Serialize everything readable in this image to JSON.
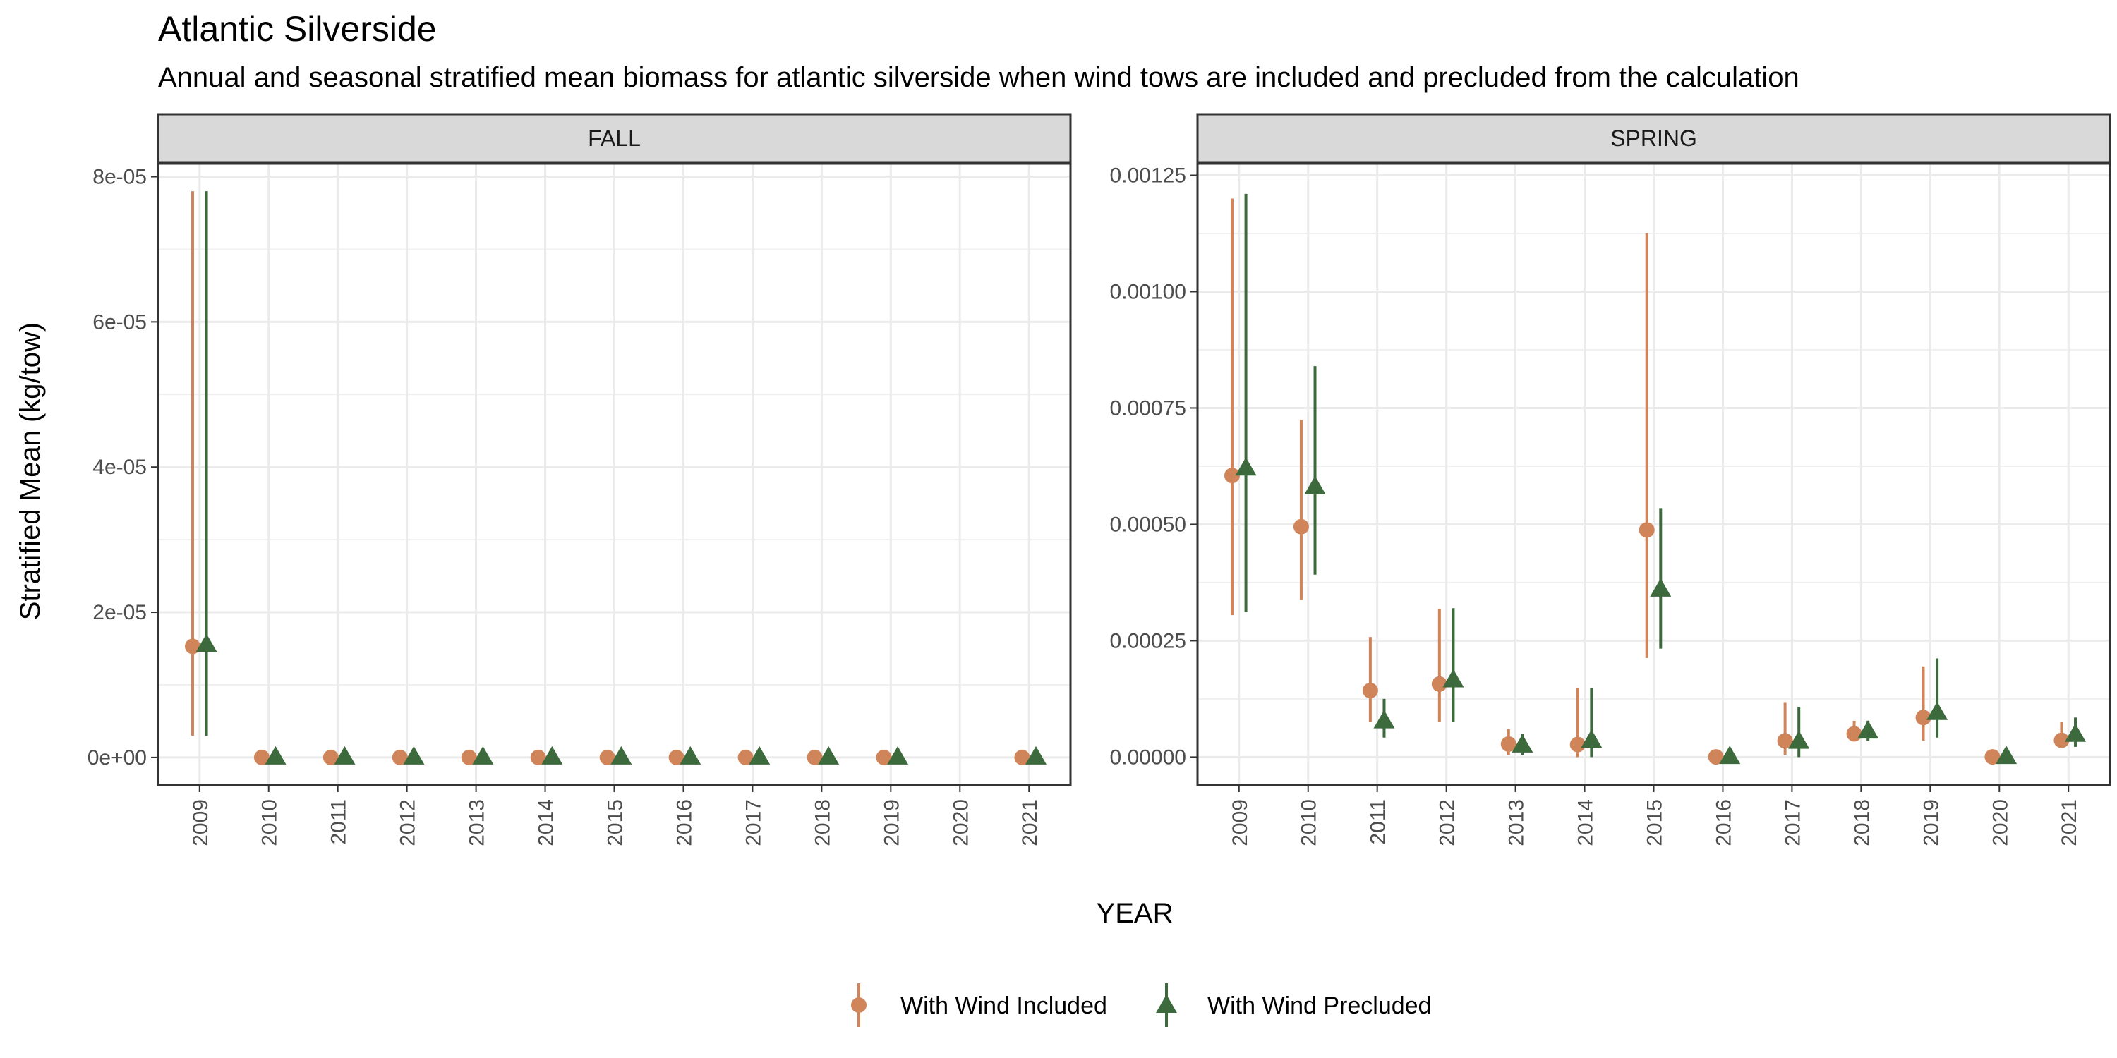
{
  "title": "Atlantic Silverside",
  "subtitle": "Annual and seasonal stratified mean biomass for atlantic silverside when wind tows are included and precluded from the calculation",
  "colors": {
    "included": "#D0845A",
    "precluded": "#3C6A3C"
  },
  "chart_data": {
    "type": "scatter",
    "xlabel": "YEAR",
    "ylabel": "Stratified Mean (kg/tow)",
    "legend": {
      "position": "bottom",
      "entries": [
        "With Wind Included",
        "With Wind Precluded"
      ]
    },
    "grid": true,
    "panels": [
      {
        "name": "FALL",
        "x": [
          "2009",
          "2010",
          "2011",
          "2012",
          "2013",
          "2014",
          "2015",
          "2016",
          "2017",
          "2018",
          "2019",
          "2020",
          "2021"
        ],
        "ylim": [
          -3.8e-06,
          8.18e-05
        ],
        "yticks": [
          0,
          2e-05,
          4e-05,
          6e-05,
          8e-05
        ],
        "yticklabels": [
          "0e+00",
          "2e-05",
          "4e-05",
          "6e-05",
          "8e-05"
        ],
        "series": [
          {
            "name": "With Wind Included",
            "values": [
              1.53e-05,
              0,
              0,
              0,
              0,
              0,
              0,
              0,
              0,
              0,
              0,
              null,
              0
            ],
            "lower": [
              3e-06,
              0,
              0,
              0,
              0,
              0,
              0,
              0,
              0,
              0,
              0,
              null,
              0
            ],
            "upper": [
              7.8e-05,
              0,
              0,
              0,
              0,
              0,
              0,
              0,
              0,
              0,
              0,
              null,
              0
            ]
          },
          {
            "name": "With Wind Precluded",
            "values": [
              1.55e-05,
              0,
              0,
              0,
              0,
              0,
              0,
              0,
              0,
              0,
              0,
              null,
              0
            ],
            "lower": [
              3e-06,
              0,
              0,
              0,
              0,
              0,
              0,
              0,
              0,
              0,
              0,
              null,
              0
            ],
            "upper": [
              7.8e-05,
              0,
              0,
              0,
              0,
              0,
              0,
              0,
              0,
              0,
              0,
              null,
              0
            ]
          }
        ]
      },
      {
        "name": "SPRING",
        "x": [
          "2009",
          "2010",
          "2011",
          "2012",
          "2013",
          "2014",
          "2015",
          "2016",
          "2017",
          "2018",
          "2019",
          "2020",
          "2021"
        ],
        "ylim": [
          -6e-05,
          0.001275
        ],
        "yticks": [
          0,
          0.00025,
          0.0005,
          0.00075,
          0.001,
          0.00125
        ],
        "yticklabels": [
          "0.00000",
          "0.00025",
          "0.00050",
          "0.00075",
          "0.00100",
          "0.00125"
        ],
        "series": [
          {
            "name": "With Wind Included",
            "values": [
              0.000605,
              0.000495,
              0.000143,
              0.000157,
              2.8e-05,
              2.7e-05,
              0.000488,
              5e-07,
              3.5e-05,
              5e-05,
              8.5e-05,
              5e-07,
              3.6e-05
            ],
            "lower": [
              0.000305,
              0.000338,
              7.5e-05,
              7.5e-05,
              5e-06,
              0.0,
              0.000213,
              0.0,
              5e-06,
              3.5e-05,
              3.5e-05,
              0.0,
              2e-05
            ],
            "upper": [
              0.0012,
              0.000725,
              0.000258,
              0.000318,
              6e-05,
              0.000148,
              0.001125,
              5e-06,
              0.000118,
              7.8e-05,
              0.000195,
              5e-06,
              7.5e-05
            ]
          },
          {
            "name": "With Wind Precluded",
            "values": [
              0.00062,
              0.00058,
              7.7e-05,
              0.000165,
              2.5e-05,
              3.5e-05,
              0.00036,
              5e-07,
              3.3e-05,
              5.5e-05,
              9.5e-05,
              5e-07,
              4.8e-05
            ],
            "lower": [
              0.000312,
              0.000392,
              4.2e-05,
              7.5e-05,
              5e-06,
              0.0,
              0.000233,
              0.0,
              0.0,
              3.5e-05,
              4.2e-05,
              0.0,
              2.2e-05
            ],
            "upper": [
              0.00121,
              0.00084,
              0.000125,
              0.00032,
              5e-05,
              0.000148,
              0.000535,
              5e-06,
              0.000108,
              7.8e-05,
              0.000212,
              5e-06,
              8.5e-05
            ]
          }
        ]
      }
    ]
  }
}
